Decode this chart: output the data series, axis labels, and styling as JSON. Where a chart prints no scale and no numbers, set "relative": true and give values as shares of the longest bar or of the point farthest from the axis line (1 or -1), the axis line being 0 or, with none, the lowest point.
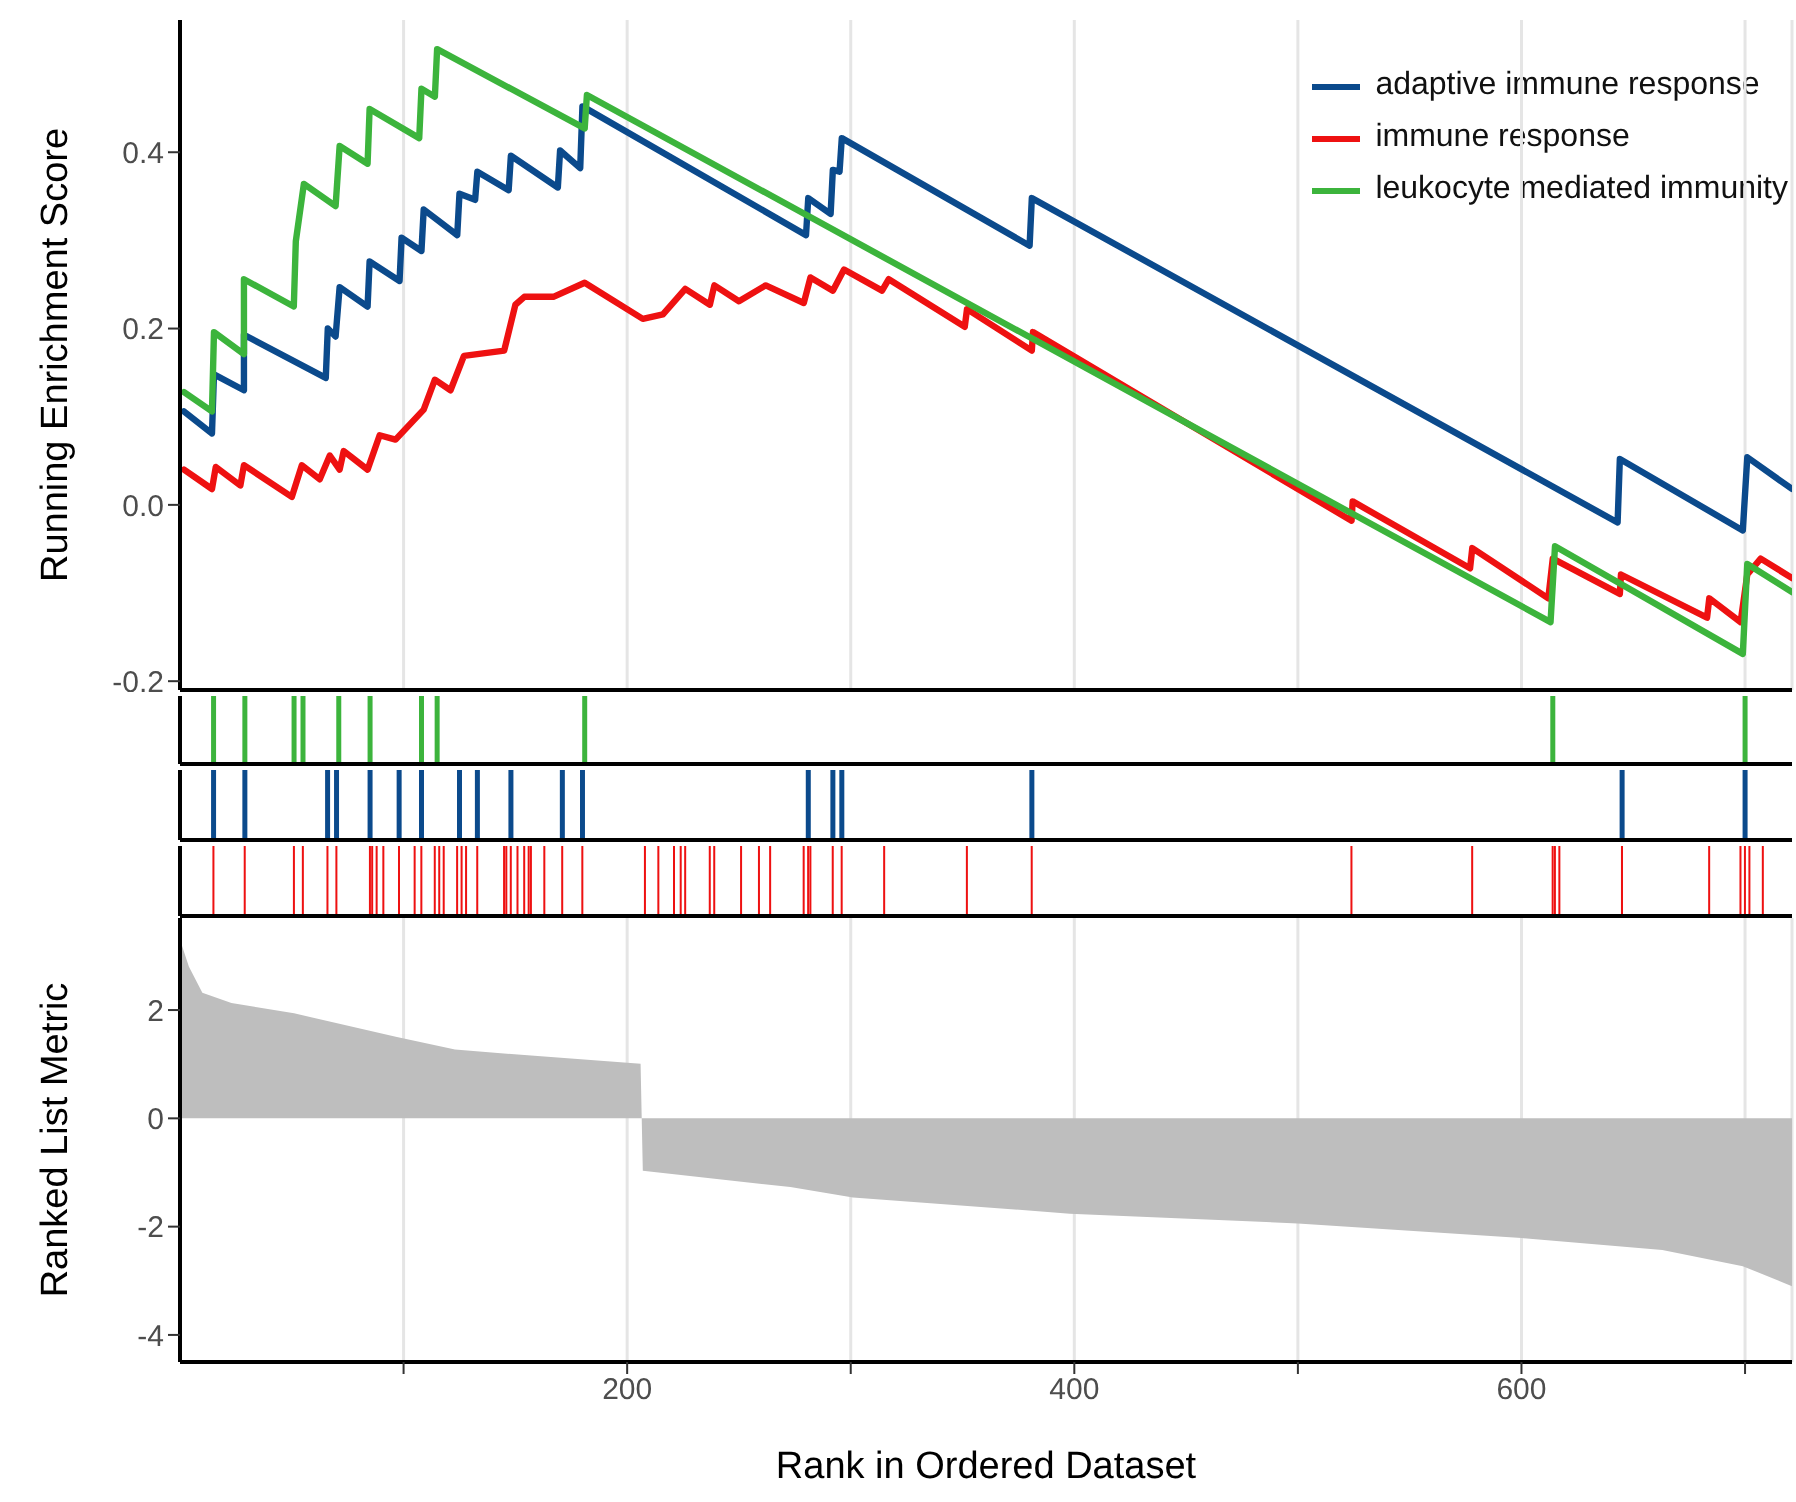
{
  "chart_data": [
    {
      "type": "line",
      "ylabel": "Running Enrichment Score",
      "xlim": [
        0,
        721
      ],
      "xticks": [
        {
          "value": 100,
          "label": null
        },
        {
          "value": 200,
          "label": null
        },
        {
          "value": 300,
          "label": null
        },
        {
          "value": 400,
          "label": null
        },
        {
          "value": 500,
          "label": null
        },
        {
          "value": 600,
          "label": null
        },
        {
          "value": 700,
          "label": null
        }
      ],
      "ylim": [
        -0.21,
        0.55
      ],
      "yticks": [
        -0.2,
        {
          "value": 0,
          "label": "0.0"
        },
        0.2,
        0.4
      ],
      "tick_labels": "y",
      "grid": "x",
      "legend": "top right",
      "line_style": "solid",
      "marker": "none",
      "series": [
        {
          "name": "adaptive immune response",
          "color": "#0b4a8c",
          "x": [
            1.8,
            14.3,
            15.2,
            28.6,
            28.6,
            65.2,
            66.1,
            69.6,
            71.4,
            83.9,
            84.8,
            98.2,
            99.1,
            108,
            109,
            124,
            125,
            132,
            133,
            147,
            148,
            169,
            170,
            179,
            180,
            280,
            281,
            291,
            292,
            295,
            296,
            380,
            381,
            643,
            644,
            699,
            701,
            721
          ],
          "values": [
            0.106,
            0.081,
            0.148,
            0.13,
            0.193,
            0.144,
            0.2,
            0.191,
            0.247,
            0.225,
            0.276,
            0.254,
            0.303,
            0.288,
            0.335,
            0.306,
            0.353,
            0.346,
            0.378,
            0.357,
            0.396,
            0.36,
            0.402,
            0.382,
            0.452,
            0.306,
            0.348,
            0.33,
            0.38,
            0.378,
            0.416,
            0.294,
            0.348,
            -0.02,
            0.052,
            -0.029,
            0.054,
            0.018
          ]
        },
        {
          "name": "immune response",
          "color": "#ee1111",
          "x": [
            1.8,
            14.3,
            16,
            27,
            28.6,
            50,
            54.5,
            62.5,
            67,
            71.4,
            73.2,
            83.9,
            89.3,
            96.4,
            109,
            114,
            121,
            127,
            145,
            150,
            154,
            167,
            181,
            207,
            216,
            226,
            237,
            239,
            250,
            262,
            279,
            282,
            292,
            297,
            314,
            317,
            351,
            352,
            381,
            381.5,
            524,
            524.5,
            577,
            578,
            612,
            614,
            644,
            644.5,
            683,
            684,
            698,
            701,
            707,
            721
          ],
          "values": [
            0.04,
            0.018,
            0.043,
            0.022,
            0.045,
            0.009,
            0.045,
            0.029,
            0.056,
            0.04,
            0.061,
            0.04,
            0.079,
            0.074,
            0.108,
            0.142,
            0.13,
            0.169,
            0.175,
            0.227,
            0.236,
            0.236,
            0.252,
            0.211,
            0.216,
            0.245,
            0.227,
            0.249,
            0.231,
            0.249,
            0.229,
            0.258,
            0.243,
            0.267,
            0.243,
            0.256,
            0.202,
            0.222,
            0.175,
            0.196,
            -0.018,
            0.004,
            -0.072,
            -0.049,
            -0.106,
            -0.061,
            -0.101,
            -0.079,
            -0.128,
            -0.106,
            -0.133,
            -0.079,
            -0.061,
            -0.083
          ]
        },
        {
          "name": "leukocyte mediated immunity",
          "color": "#3cb43c",
          "x": [
            1.8,
            14.3,
            15.2,
            28.6,
            28.6,
            50.9,
            51.8,
            55.4,
            69.6,
            71.4,
            83.9,
            84.8,
            107,
            108,
            114,
            115,
            181,
            182,
            613,
            615,
            699,
            701,
            721
          ],
          "values": [
            0.128,
            0.106,
            0.196,
            0.171,
            0.256,
            0.225,
            0.299,
            0.364,
            0.339,
            0.407,
            0.387,
            0.449,
            0.416,
            0.472,
            0.463,
            0.517,
            0.427,
            0.465,
            -0.133,
            -0.047,
            -0.169,
            -0.067,
            -0.099
          ]
        }
      ]
    },
    {
      "type": "bar",
      "relative": true,
      "tick_labels": false,
      "xlim": [
        0,
        721
      ],
      "color": "#3cb43c",
      "x": [
        15,
        29,
        51,
        55,
        71,
        85,
        108,
        115,
        181,
        614,
        700
      ],
      "values": [
        1,
        1,
        1,
        1,
        1,
        1,
        1,
        1,
        1,
        1,
        1
      ]
    },
    {
      "type": "bar",
      "relative": true,
      "tick_labels": false,
      "xlim": [
        0,
        721
      ],
      "color": "#0b4a8c",
      "x": [
        15,
        29,
        66,
        70,
        85,
        98,
        108,
        125,
        133,
        148,
        171,
        180,
        281,
        292,
        296,
        381,
        645,
        700
      ],
      "values": [
        1,
        1,
        1,
        1,
        1,
        1,
        1,
        1,
        1,
        1,
        1,
        1,
        1,
        1,
        1,
        1,
        1,
        1
      ]
    },
    {
      "type": "bar",
      "relative": true,
      "tick_labels": false,
      "xlim": [
        0,
        721
      ],
      "color": "#ee1111",
      "x": [
        15,
        29,
        51,
        55,
        66,
        70,
        85,
        86,
        88,
        91,
        98,
        105,
        108,
        114,
        116,
        118,
        124,
        126,
        128,
        133,
        145,
        146,
        148,
        151,
        154,
        156,
        157,
        163,
        171,
        180,
        208,
        214,
        221,
        224,
        226,
        237,
        239,
        251,
        259,
        264,
        279,
        281,
        282,
        292,
        296,
        315,
        352,
        381,
        524,
        578,
        614,
        615,
        617,
        645,
        684,
        698,
        700,
        702,
        708
      ],
      "values": [
        1,
        1,
        1,
        1,
        1,
        1,
        1,
        1,
        1,
        1,
        1,
        1,
        1,
        1,
        1,
        1,
        1,
        1,
        1,
        1,
        1,
        1,
        1,
        1,
        1,
        1,
        1,
        1,
        1,
        1,
        1,
        1,
        1,
        1,
        1,
        1,
        1,
        1,
        1,
        1,
        1,
        1,
        1,
        1,
        1,
        1,
        1,
        1,
        1,
        1,
        1,
        1,
        1,
        1,
        1,
        1,
        1,
        1,
        1
      ]
    },
    {
      "type": "area",
      "xlabel": "Rank in Ordered Dataset",
      "ylabel": "Ranked List Metric",
      "xlim": [
        0,
        721
      ],
      "xticks": [
        {
          "value": 100,
          "label": null
        },
        200,
        {
          "value": 300,
          "label": null
        },
        400,
        {
          "value": 500,
          "label": null
        },
        600,
        {
          "value": 700,
          "label": null
        }
      ],
      "ylim": [
        -4.5,
        3.7
      ],
      "yticks": [
        -4,
        -2,
        0,
        2
      ],
      "grid": "x",
      "color": "#bebebe",
      "x": [
        0,
        4,
        10,
        23,
        51,
        97,
        123,
        157,
        206,
        207,
        273,
        301,
        398,
        500,
        600,
        663,
        699,
        721
      ],
      "values": [
        3.3,
        2.8,
        2.32,
        2.13,
        1.94,
        1.5,
        1.27,
        1.16,
        1.01,
        -0.97,
        -1.27,
        -1.46,
        -1.76,
        -1.94,
        -2.21,
        -2.43,
        -2.73,
        -3.1
      ]
    }
  ]
}
